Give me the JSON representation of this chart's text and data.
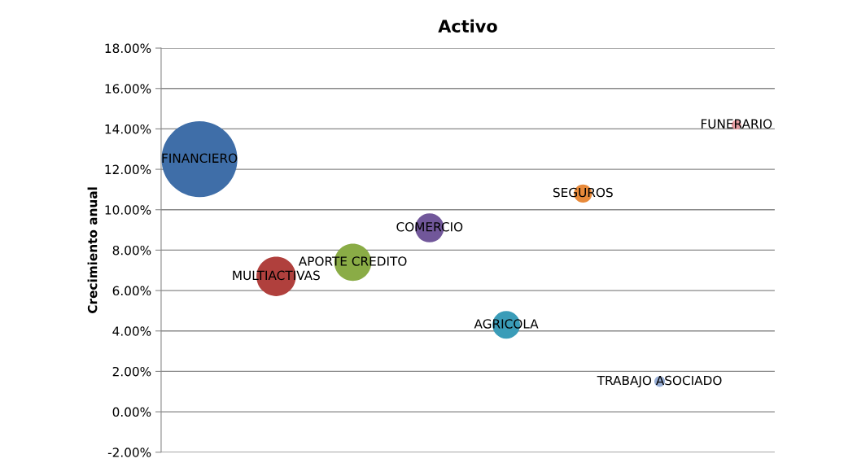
{
  "chart_data": {
    "type": "bubble",
    "title": "Activo",
    "ylabel": "Crecimiento anual",
    "categories": [
      null,
      null,
      null,
      null,
      null,
      null,
      null,
      null
    ],
    "series": [
      {
        "name": "FINANCIERO",
        "color": "#3f6ea8",
        "values": [
          12.5,
          null,
          null,
          null,
          null,
          null,
          null,
          null
        ],
        "sizes": [
          1,
          null,
          null,
          null,
          null,
          null,
          null,
          null
        ]
      },
      {
        "name": "MULTIACTIVAS",
        "color": "#b0403d",
        "values": [
          null,
          6.7,
          null,
          null,
          null,
          null,
          null,
          null
        ],
        "sizes": [
          null,
          0.27,
          null,
          null,
          null,
          null,
          null,
          null
        ]
      },
      {
        "name": "APORTE CREDITO",
        "color": "#8aac46",
        "values": [
          null,
          null,
          7.4,
          null,
          null,
          null,
          null,
          null
        ],
        "sizes": [
          null,
          null,
          0.24,
          null,
          null,
          null,
          null,
          null
        ]
      },
      {
        "name": "COMERCIO",
        "color": "#71579a",
        "values": [
          null,
          null,
          null,
          9.1,
          null,
          null,
          null,
          null
        ],
        "sizes": [
          null,
          null,
          null,
          0.145,
          null,
          null,
          null,
          null
        ]
      },
      {
        "name": "AGRICOLA",
        "color": "#3a9cb8",
        "values": [
          null,
          null,
          null,
          null,
          4.3,
          null,
          null,
          null
        ],
        "sizes": [
          null,
          null,
          null,
          null,
          0.133,
          null,
          null,
          null
        ]
      },
      {
        "name": "SEGUROS",
        "color": "#e88a3a",
        "values": [
          null,
          null,
          null,
          null,
          null,
          10.8,
          null,
          null
        ],
        "sizes": [
          null,
          null,
          null,
          null,
          null,
          0.057,
          null,
          null
        ]
      },
      {
        "name": "TRABAJO ASOCIADO",
        "color": "#98aed6",
        "values": [
          null,
          null,
          null,
          null,
          null,
          null,
          1.5,
          null
        ],
        "sizes": [
          null,
          null,
          null,
          null,
          null,
          null,
          0.02,
          null
        ]
      },
      {
        "name": "FUNERARIO",
        "color": "#e39ba0",
        "values": [
          null,
          null,
          null,
          null,
          null,
          null,
          null,
          14.2
        ],
        "sizes": [
          null,
          null,
          null,
          null,
          null,
          null,
          null,
          0.016
        ]
      }
    ],
    "ylim": [
      -2,
      18
    ],
    "yticks": [
      {
        "value": -2,
        "label": "-2.00%"
      },
      {
        "value": 0,
        "label": "0.00%"
      },
      {
        "value": 2,
        "label": "2.00%"
      },
      {
        "value": 4,
        "label": "4.00%"
      },
      {
        "value": 6,
        "label": "6.00%"
      },
      {
        "value": 8,
        "label": "8.00%"
      },
      {
        "value": 10,
        "label": "10.00%"
      },
      {
        "value": 12,
        "label": "12.00%"
      },
      {
        "value": 14,
        "label": "14.00%"
      },
      {
        "value": 16,
        "label": "16.00%"
      },
      {
        "value": 18,
        "label": "18.00%"
      }
    ],
    "grid": "y",
    "legend": false
  }
}
